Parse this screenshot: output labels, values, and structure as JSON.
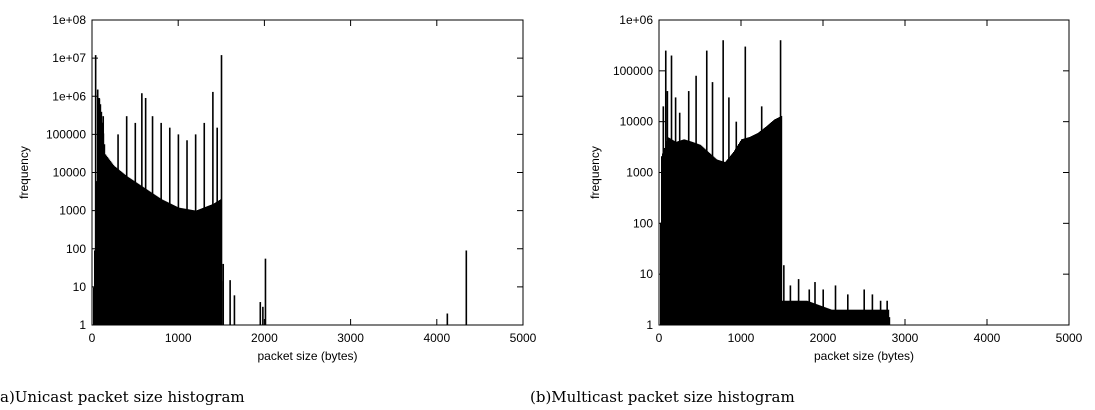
{
  "chart_data": [
    {
      "type": "bar",
      "caption": "a)Unicast packet size histogram",
      "xlabel": "packet size (bytes)",
      "ylabel": "frequency",
      "xlim": [
        0,
        5000
      ],
      "ylim": [
        1,
        100000000
      ],
      "yscale": "log",
      "xticks": [
        "0",
        "1000",
        "2000",
        "3000",
        "4000",
        "5000"
      ],
      "yticks": [
        "1",
        "10",
        "100",
        "1000",
        "10000",
        "100000",
        "1e+06",
        "1e+07",
        "1e+08"
      ],
      "envelope": [
        [
          0,
          1
        ],
        [
          20,
          50
        ],
        [
          40,
          2000
        ],
        [
          60,
          60000
        ],
        [
          80,
          900000
        ],
        [
          100,
          500000
        ],
        [
          150,
          30000
        ],
        [
          250,
          15000
        ],
        [
          400,
          8000
        ],
        [
          600,
          4000
        ],
        [
          800,
          2000
        ],
        [
          1000,
          1200
        ],
        [
          1200,
          1000
        ],
        [
          1400,
          1500
        ],
        [
          1490,
          2000
        ],
        [
          1500,
          1
        ]
      ],
      "spikes": [
        [
          40,
          12000000
        ],
        [
          64,
          1500000
        ],
        [
          80,
          900000
        ],
        [
          128,
          300000
        ],
        [
          300,
          100000
        ],
        [
          400,
          300000
        ],
        [
          500,
          200000
        ],
        [
          576,
          1200000
        ],
        [
          620,
          900000
        ],
        [
          700,
          300000
        ],
        [
          800,
          200000
        ],
        [
          900,
          150000
        ],
        [
          1000,
          100000
        ],
        [
          1100,
          70000
        ],
        [
          1200,
          100000
        ],
        [
          1300,
          200000
        ],
        [
          1400,
          1300000
        ],
        [
          1450,
          150000
        ],
        [
          1500,
          12000000
        ],
        [
          1520,
          40
        ],
        [
          1600,
          15
        ],
        [
          1650,
          6
        ],
        [
          1950,
          4
        ],
        [
          1980,
          3
        ],
        [
          2010,
          55
        ],
        [
          4120,
          2
        ],
        [
          4340,
          90
        ]
      ],
      "color": "#000000"
    },
    {
      "type": "bar",
      "caption": "(b)Multicast packet size histogram",
      "xlabel": "packet size (bytes)",
      "ylabel": "frequency",
      "xlim": [
        0,
        5000
      ],
      "ylim": [
        1,
        1000000
      ],
      "yscale": "log",
      "xticks": [
        "0",
        "1000",
        "2000",
        "3000",
        "4000",
        "5000"
      ],
      "yticks": [
        "1",
        "10",
        "100",
        "1000",
        "10000",
        "100000",
        "1e+06"
      ],
      "envelope": [
        [
          0,
          1
        ],
        [
          20,
          2000
        ],
        [
          60,
          3000
        ],
        [
          100,
          5000
        ],
        [
          200,
          4000
        ],
        [
          300,
          4500
        ],
        [
          400,
          4000
        ],
        [
          500,
          3500
        ],
        [
          600,
          2500
        ],
        [
          700,
          1800
        ],
        [
          800,
          1600
        ],
        [
          900,
          2500
        ],
        [
          1000,
          4500
        ],
        [
          1100,
          5000
        ],
        [
          1200,
          6000
        ],
        [
          1300,
          8000
        ],
        [
          1400,
          11000
        ],
        [
          1490,
          13000
        ],
        [
          1500,
          3
        ],
        [
          1800,
          3
        ],
        [
          2100,
          2
        ],
        [
          2500,
          2
        ],
        [
          2800,
          2
        ],
        [
          2810,
          1
        ]
      ],
      "spikes": [
        [
          50,
          20000
        ],
        [
          80,
          250000
        ],
        [
          100,
          40000
        ],
        [
          150,
          200000
        ],
        [
          200,
          30000
        ],
        [
          250,
          15000
        ],
        [
          360,
          40000
        ],
        [
          450,
          80000
        ],
        [
          580,
          250000
        ],
        [
          650,
          60000
        ],
        [
          780,
          400000
        ],
        [
          850,
          30000
        ],
        [
          940,
          10000
        ],
        [
          1050,
          300000
        ],
        [
          1250,
          20000
        ],
        [
          1480,
          400000
        ],
        [
          1520,
          15
        ],
        [
          1600,
          6
        ],
        [
          1700,
          8
        ],
        [
          1830,
          5
        ],
        [
          1900,
          7
        ],
        [
          2000,
          5
        ],
        [
          2150,
          6
        ],
        [
          2300,
          4
        ],
        [
          2500,
          5
        ],
        [
          2600,
          4
        ],
        [
          2700,
          3
        ],
        [
          2780,
          3
        ]
      ],
      "color": "#000000"
    }
  ]
}
